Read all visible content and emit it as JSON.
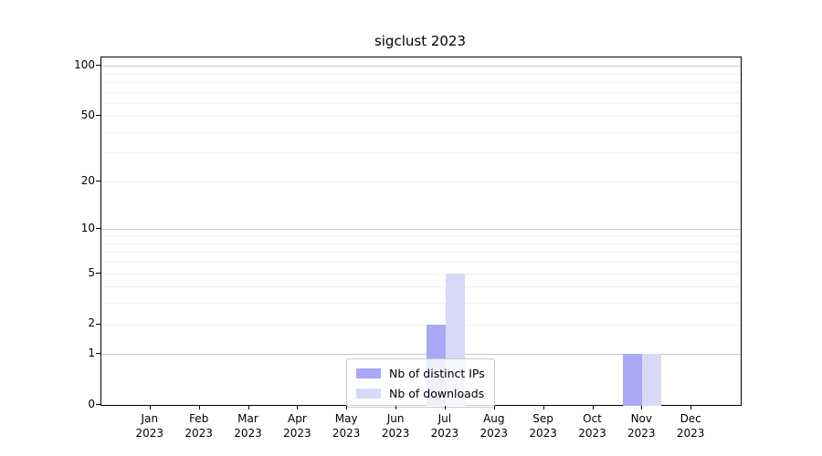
{
  "chart_data": {
    "type": "bar",
    "title": "sigclust 2023",
    "categories": [
      "Jan",
      "Feb",
      "Mar",
      "Apr",
      "May",
      "Jun",
      "Jul",
      "Aug",
      "Sep",
      "Oct",
      "Nov",
      "Dec"
    ],
    "category_year": "2023",
    "series": [
      {
        "name": "Nb of distinct IPs",
        "color": "#a8a8f6",
        "values": [
          0,
          0,
          0,
          0,
          0,
          0,
          2,
          0,
          0,
          0,
          1,
          0
        ]
      },
      {
        "name": "Nb of downloads",
        "color": "#d8d8f9",
        "values": [
          0,
          0,
          0,
          0,
          0,
          0,
          5,
          0,
          0,
          0,
          1,
          0
        ]
      }
    ],
    "xlabel": "",
    "ylabel": "",
    "yscale": "log1p",
    "ylim": [
      0,
      112
    ],
    "yticks": [
      0,
      1,
      2,
      5,
      10,
      20,
      50,
      100
    ],
    "major_gridlines": [
      1,
      10,
      100
    ],
    "minor_gridlines": [
      2,
      3,
      4,
      5,
      6,
      7,
      8,
      9,
      20,
      30,
      40,
      50,
      60,
      70,
      80,
      90
    ],
    "grid": "horizontal",
    "legend_position": "lower center",
    "colors": {
      "axis": "#000000",
      "major_grid": "#c9c9c9",
      "minor_grid": "#efefef",
      "background": "#ffffff"
    }
  }
}
